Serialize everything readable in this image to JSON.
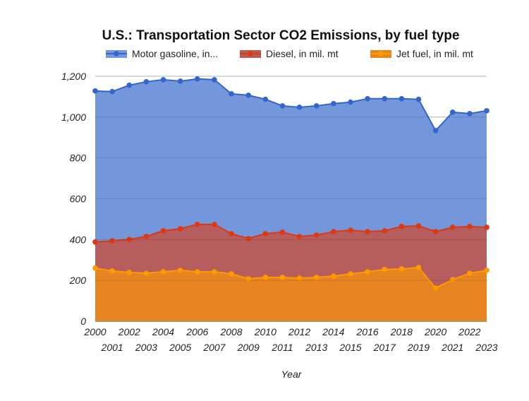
{
  "chart_data": {
    "type": "area",
    "title": "U.S.: Transportation Sector CO2 Emissions, by fuel type",
    "xlabel": "Year",
    "ylabel": "",
    "ylim": [
      0,
      1200
    ],
    "yticks": [
      "0",
      "200",
      "400",
      "600",
      "800",
      "1,000",
      "1,200"
    ],
    "grid": true,
    "legend_position": "top",
    "x": [
      "2000",
      "2001",
      "2002",
      "2003",
      "2004",
      "2005",
      "2006",
      "2007",
      "2008",
      "2009",
      "2010",
      "2011",
      "2012",
      "2013",
      "2014",
      "2015",
      "2016",
      "2017",
      "2018",
      "2019",
      "2020",
      "2021",
      "2022",
      "2023"
    ],
    "series": [
      {
        "name": "Motor gasoline, in...",
        "color": "#3366cc",
        "fill": "#7497dc",
        "values": [
          1128,
          1125,
          1156,
          1173,
          1183,
          1176,
          1187,
          1183,
          1114,
          1107,
          1087,
          1055,
          1048,
          1055,
          1066,
          1073,
          1090,
          1090,
          1090,
          1087,
          934,
          1024,
          1017,
          1031
        ]
      },
      {
        "name": "Diesel, in mil. mt",
        "color": "#dc3912",
        "fill": "#b95a55",
        "values": [
          388,
          394,
          401,
          415,
          443,
          453,
          474,
          474,
          429,
          405,
          429,
          436,
          415,
          422,
          439,
          446,
          439,
          443,
          464,
          467,
          439,
          460,
          464,
          460
        ]
      },
      {
        "name": "Jet fuel, in mil. mt",
        "color": "#ff9900",
        "fill": "#e8861e",
        "values": [
          260,
          246,
          239,
          235,
          242,
          249,
          242,
          242,
          232,
          208,
          215,
          215,
          211,
          215,
          221,
          232,
          242,
          253,
          256,
          263,
          163,
          204,
          235,
          249
        ]
      }
    ]
  }
}
